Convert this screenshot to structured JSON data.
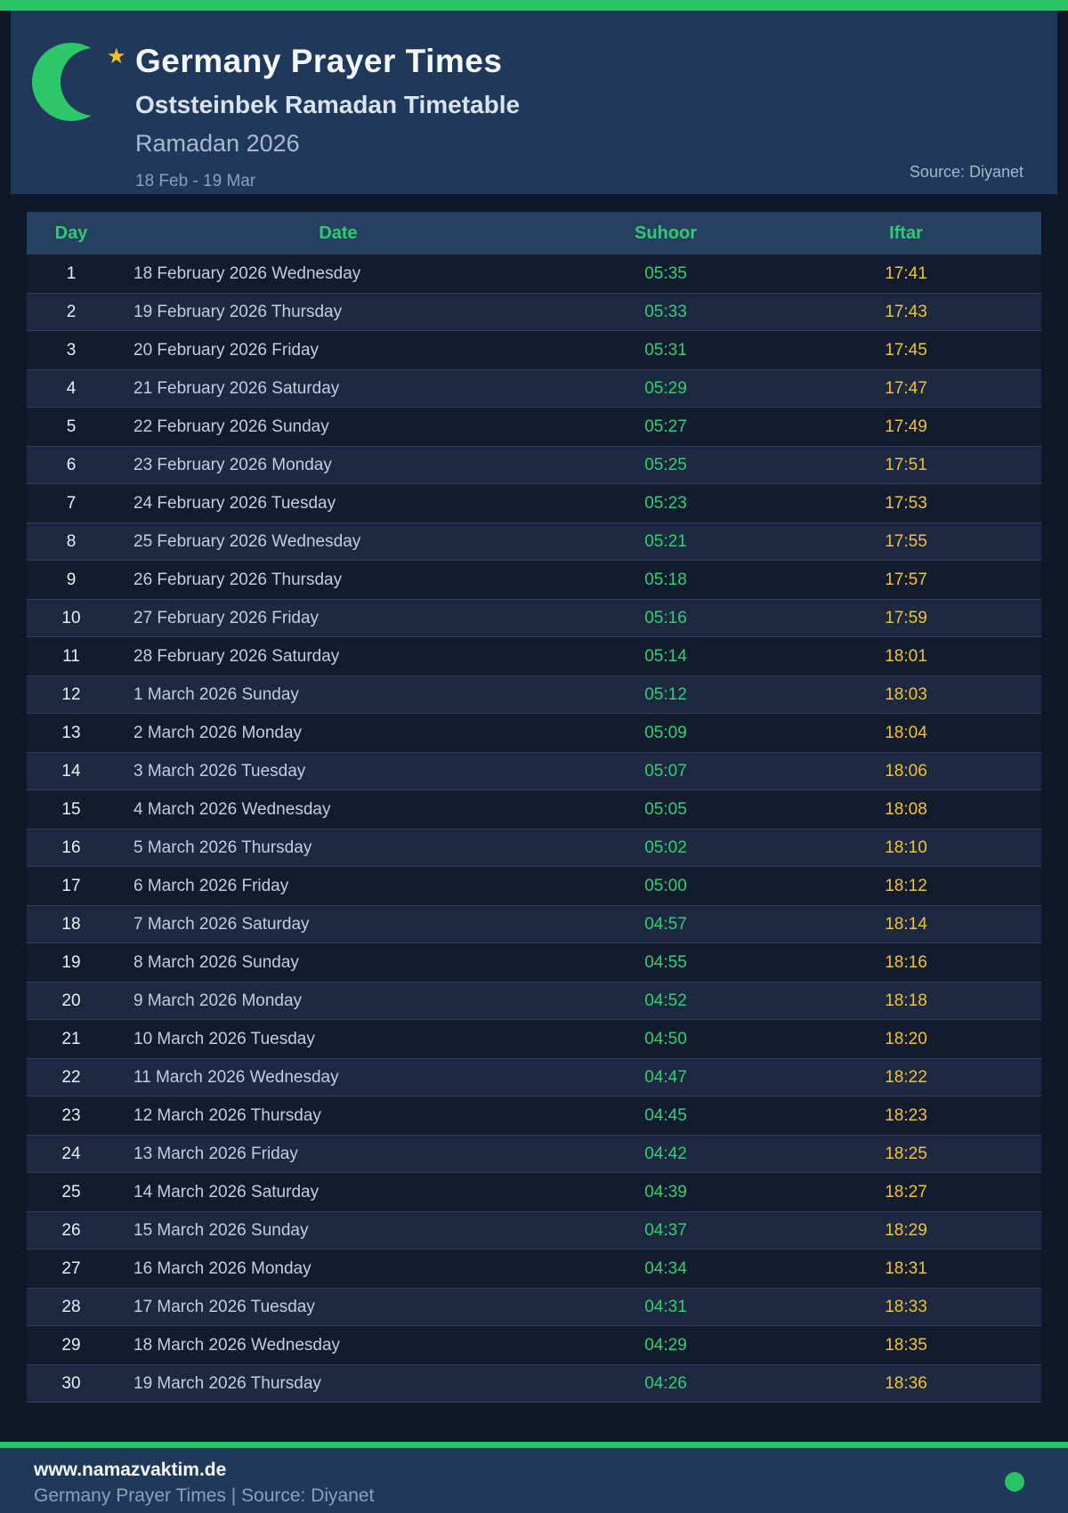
{
  "header": {
    "title": "Germany Prayer Times",
    "subtitle": "Oststeinbek Ramadan Timetable",
    "season": "Ramadan 2026",
    "date_range": "18 Feb - 19 Mar",
    "source": "Source: Diyanet",
    "icons": {
      "moon": "crescent-moon-icon",
      "star": "star-icon"
    }
  },
  "table": {
    "columns": [
      "Day",
      "Date",
      "Suhoor",
      "Iftar"
    ],
    "rows": [
      [
        "1",
        "18 February 2026 Wednesday",
        "05:35",
        "17:41"
      ],
      [
        "2",
        "19 February 2026 Thursday",
        "05:33",
        "17:43"
      ],
      [
        "3",
        "20 February 2026 Friday",
        "05:31",
        "17:45"
      ],
      [
        "4",
        "21 February 2026 Saturday",
        "05:29",
        "17:47"
      ],
      [
        "5",
        "22 February 2026 Sunday",
        "05:27",
        "17:49"
      ],
      [
        "6",
        "23 February 2026 Monday",
        "05:25",
        "17:51"
      ],
      [
        "7",
        "24 February 2026 Tuesday",
        "05:23",
        "17:53"
      ],
      [
        "8",
        "25 February 2026 Wednesday",
        "05:21",
        "17:55"
      ],
      [
        "9",
        "26 February 2026 Thursday",
        "05:18",
        "17:57"
      ],
      [
        "10",
        "27 February 2026 Friday",
        "05:16",
        "17:59"
      ],
      [
        "11",
        "28 February 2026 Saturday",
        "05:14",
        "18:01"
      ],
      [
        "12",
        "1 March 2026 Sunday",
        "05:12",
        "18:03"
      ],
      [
        "13",
        "2 March 2026 Monday",
        "05:09",
        "18:04"
      ],
      [
        "14",
        "3 March 2026 Tuesday",
        "05:07",
        "18:06"
      ],
      [
        "15",
        "4 March 2026 Wednesday",
        "05:05",
        "18:08"
      ],
      [
        "16",
        "5 March 2026 Thursday",
        "05:02",
        "18:10"
      ],
      [
        "17",
        "6 March 2026 Friday",
        "05:00",
        "18:12"
      ],
      [
        "18",
        "7 March 2026 Saturday",
        "04:57",
        "18:14"
      ],
      [
        "19",
        "8 March 2026 Sunday",
        "04:55",
        "18:16"
      ],
      [
        "20",
        "9 March 2026 Monday",
        "04:52",
        "18:18"
      ],
      [
        "21",
        "10 March 2026 Tuesday",
        "04:50",
        "18:20"
      ],
      [
        "22",
        "11 March 2026 Wednesday",
        "04:47",
        "18:22"
      ],
      [
        "23",
        "12 March 2026 Thursday",
        "04:45",
        "18:23"
      ],
      [
        "24",
        "13 March 2026 Friday",
        "04:42",
        "18:25"
      ],
      [
        "25",
        "14 March 2026 Saturday",
        "04:39",
        "18:27"
      ],
      [
        "26",
        "15 March 2026 Sunday",
        "04:37",
        "18:29"
      ],
      [
        "27",
        "16 March 2026 Monday",
        "04:34",
        "18:31"
      ],
      [
        "28",
        "17 March 2026 Tuesday",
        "04:31",
        "18:33"
      ],
      [
        "29",
        "18 March 2026 Wednesday",
        "04:29",
        "18:35"
      ],
      [
        "30",
        "19 March 2026 Thursday",
        "04:26",
        "18:36"
      ]
    ]
  },
  "footer": {
    "website": "www.namazvaktim.de",
    "tagline": "Germany Prayer Times | Source: Diyanet"
  },
  "colors": {
    "accent_green": "#28c364",
    "suhoor_green": "#31d072",
    "iftar_gold": "#f1c232",
    "panel_navy": "#20395a",
    "page_bg": "#0e1828",
    "table_header_bg": "#26405f",
    "row_alt_bg": "#1c2940"
  }
}
